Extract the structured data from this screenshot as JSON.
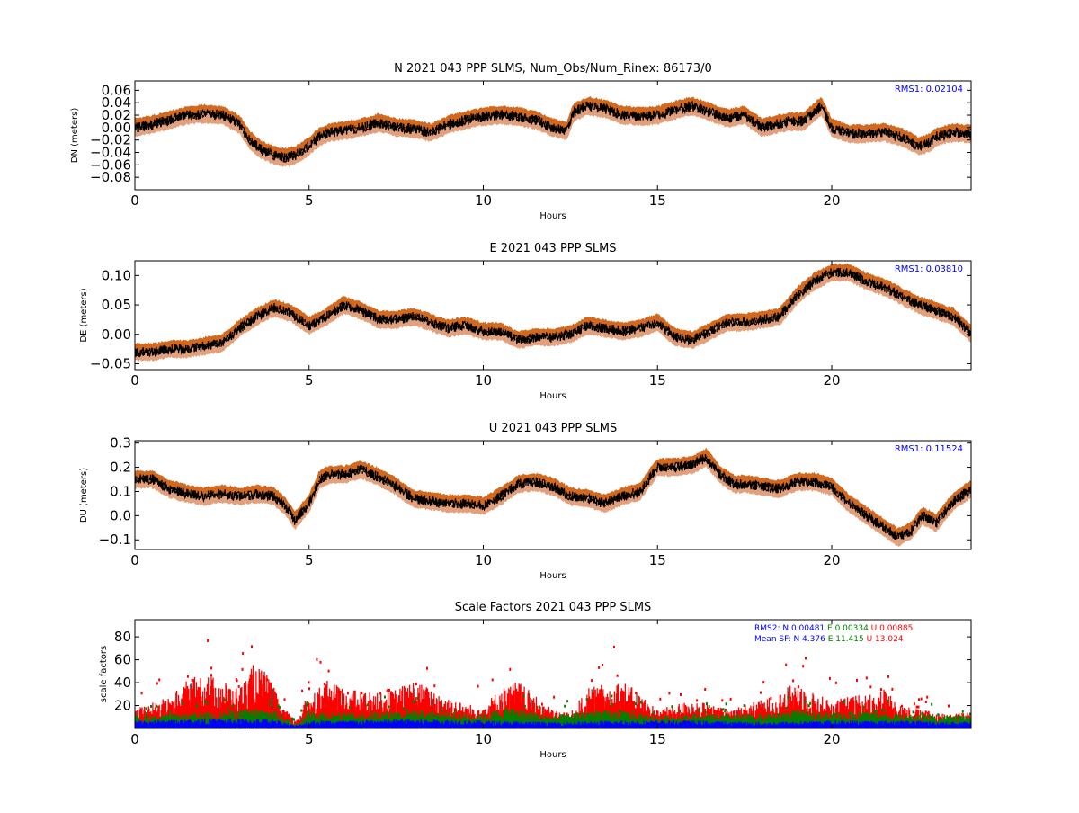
{
  "chart_data": [
    {
      "type": "line",
      "title": "N 2021 043 PPP  SLMS, Num_Obs/Num_Rinex: 86173/0",
      "xlabel": "Hours",
      "ylabel": "DN (meters)",
      "xlim": [
        0,
        24
      ],
      "ylim": [
        -0.1,
        0.075
      ],
      "xticks": [
        "0",
        "5",
        "10",
        "15",
        "20"
      ],
      "yticks": [
        "0.06",
        "0.04",
        "0.02",
        "0.00",
        "−0.02",
        "−0.04",
        "−0.06",
        "−0.08"
      ],
      "rms_label": "RMS1:  0.02104",
      "band_halfwidth": 0.012,
      "series": [
        {
          "x": [
            0,
            0.5,
            1,
            1.5,
            2,
            2.5,
            3,
            3.3,
            3.6,
            4,
            4.3,
            4.6,
            5,
            5.3,
            5.6,
            6,
            6.5,
            7,
            7.5,
            8,
            8.5,
            9,
            9.5,
            10,
            10.5,
            11,
            11.5,
            12,
            12.4,
            12.6,
            13,
            13.5,
            14,
            14.5,
            15,
            15.5,
            16,
            16.5,
            17,
            17.5,
            18,
            18.4,
            18.8,
            19.2,
            19.7,
            20,
            20.5,
            21,
            21.5,
            22,
            22.5,
            22.8,
            23,
            23.5,
            24
          ],
          "y": [
            0.0,
            0.005,
            0.012,
            0.02,
            0.022,
            0.02,
            0.005,
            -0.02,
            -0.035,
            -0.045,
            -0.048,
            -0.045,
            -0.03,
            -0.015,
            -0.008,
            -0.005,
            0.0,
            0.008,
            0.0,
            -0.002,
            -0.008,
            0.005,
            0.012,
            0.018,
            0.02,
            0.018,
            0.012,
            0.0,
            -0.005,
            0.025,
            0.035,
            0.03,
            0.02,
            0.018,
            0.02,
            0.028,
            0.035,
            0.025,
            0.015,
            0.02,
            0.0,
            0.005,
            0.01,
            0.01,
            0.035,
            0.0,
            -0.01,
            -0.01,
            -0.008,
            -0.015,
            -0.03,
            -0.025,
            -0.015,
            -0.008,
            -0.01
          ]
        }
      ]
    },
    {
      "type": "line",
      "title": "E 2021 043 PPP  SLMS",
      "xlabel": "Hours",
      "ylabel": "DE (meters)",
      "xlim": [
        0,
        24
      ],
      "ylim": [
        -0.06,
        0.125
      ],
      "xticks": [
        "0",
        "5",
        "10",
        "15",
        "20"
      ],
      "yticks": [
        "0.10",
        "0.05",
        "0.00",
        "−0.05"
      ],
      "rms_label": "RMS1:  0.03810",
      "band_halfwidth": 0.012,
      "series": [
        {
          "x": [
            0,
            0.5,
            1,
            1.5,
            2,
            2.5,
            3,
            3.5,
            4,
            4.5,
            5,
            5.5,
            6,
            6.5,
            7,
            7.5,
            8,
            8.5,
            9,
            9.5,
            10,
            10.5,
            11,
            11.5,
            12,
            12.5,
            13,
            13.5,
            14,
            14.5,
            15,
            15.5,
            16,
            16.5,
            17,
            17.5,
            18,
            18.5,
            19,
            19.5,
            20,
            20.5,
            21,
            21.5,
            22,
            22.5,
            23,
            23.5,
            24
          ],
          "y": [
            -0.03,
            -0.03,
            -0.025,
            -0.025,
            -0.02,
            -0.015,
            0.01,
            0.03,
            0.045,
            0.035,
            0.015,
            0.03,
            0.05,
            0.04,
            0.025,
            0.025,
            0.03,
            0.02,
            0.01,
            0.015,
            0.005,
            0.005,
            -0.01,
            -0.005,
            -0.005,
            0.0,
            0.015,
            0.01,
            0.005,
            0.01,
            0.02,
            -0.005,
            -0.01,
            0.005,
            0.02,
            0.02,
            0.025,
            0.03,
            0.065,
            0.09,
            0.105,
            0.105,
            0.09,
            0.08,
            0.065,
            0.05,
            0.04,
            0.03,
            0.0
          ]
        }
      ]
    },
    {
      "type": "line",
      "title": "U 2021 043 PPP  SLMS",
      "xlabel": "Hours",
      "ylabel": "DU (meters)",
      "xlim": [
        0,
        24
      ],
      "ylim": [
        -0.14,
        0.31
      ],
      "xticks": [
        "0",
        "5",
        "10",
        "15",
        "20"
      ],
      "yticks": [
        "0.3",
        "0.2",
        "0.1",
        "0.0",
        "−0.1"
      ],
      "rms_label": "RMS1:  0.11524",
      "band_halfwidth": 0.03,
      "series": [
        {
          "x": [
            0,
            0.5,
            1,
            1.5,
            2,
            2.5,
            3,
            3.5,
            4,
            4.3,
            4.6,
            5,
            5.3,
            5.6,
            6,
            6.5,
            7,
            7.5,
            8,
            8.5,
            9,
            9.5,
            10,
            10.5,
            11,
            11.5,
            12,
            12.5,
            13,
            13.5,
            14,
            14.5,
            15,
            15.5,
            16,
            16.4,
            16.8,
            17.2,
            17.6,
            18,
            18.5,
            19,
            19.5,
            20,
            20.5,
            21,
            21.5,
            21.9,
            22.3,
            22.6,
            23,
            23.5,
            24
          ],
          "y": [
            0.15,
            0.15,
            0.11,
            0.09,
            0.08,
            0.09,
            0.08,
            0.09,
            0.08,
            0.04,
            -0.02,
            0.05,
            0.15,
            0.17,
            0.17,
            0.19,
            0.16,
            0.12,
            0.07,
            0.06,
            0.05,
            0.05,
            0.04,
            0.08,
            0.13,
            0.14,
            0.12,
            0.08,
            0.07,
            0.05,
            0.08,
            0.1,
            0.2,
            0.2,
            0.21,
            0.24,
            0.17,
            0.13,
            0.13,
            0.12,
            0.11,
            0.14,
            0.14,
            0.12,
            0.05,
            0.0,
            -0.05,
            -0.09,
            -0.06,
            0.0,
            -0.03,
            0.06,
            0.11
          ]
        }
      ]
    },
    {
      "type": "scatter",
      "title": "Scale Factors 2021 043 PPP  SLMS",
      "xlabel": "Hours",
      "ylabel": "scale factors",
      "xlim": [
        0,
        24
      ],
      "ylim": [
        0,
        95
      ],
      "xticks": [
        "0",
        "5",
        "10",
        "15",
        "20"
      ],
      "yticks": [
        "80",
        "60",
        "40",
        "20"
      ],
      "legend_lines": [
        [
          {
            "text": "RMS2: N  0.00481",
            "color": "#0000ff"
          },
          {
            "text": "E  0.00334",
            "color": "#008000"
          },
          {
            "text": "U  0.00885",
            "color": "#ff0000"
          }
        ],
        [
          {
            "text": "Mean SF: N   4.376",
            "color": "#0000ff"
          },
          {
            "text": "E  11.415",
            "color": "#008000"
          },
          {
            "text": "U  13.024",
            "color": "#ff0000"
          }
        ]
      ],
      "series": [
        {
          "name": "U",
          "color": "#ff0000",
          "x": [
            0,
            1,
            1.5,
            2,
            2.3,
            3,
            3.4,
            3.8,
            4.2,
            4.6,
            5,
            5.5,
            6,
            7,
            7.5,
            8,
            8.5,
            9,
            9.5,
            10,
            10.5,
            11,
            11.5,
            12,
            12.5,
            13,
            13.5,
            14,
            14.5,
            15,
            15.5,
            16,
            16.5,
            17,
            18,
            18.5,
            19,
            19.5,
            20,
            20.5,
            21,
            21.5,
            22,
            22.5,
            23,
            24
          ],
          "y": [
            12,
            20,
            30,
            35,
            32,
            25,
            40,
            35,
            15,
            5,
            22,
            30,
            25,
            22,
            25,
            30,
            25,
            20,
            15,
            15,
            25,
            30,
            20,
            12,
            10,
            25,
            28,
            30,
            22,
            12,
            15,
            18,
            15,
            12,
            18,
            22,
            30,
            22,
            18,
            20,
            22,
            25,
            15,
            12,
            10,
            10
          ]
        },
        {
          "name": "E",
          "color": "#008000",
          "x": [
            0,
            2,
            3.5,
            4,
            4.6,
            5,
            6,
            8,
            10,
            10.7,
            12,
            13,
            14,
            15,
            16,
            18,
            19,
            20,
            21,
            22,
            24
          ],
          "y": [
            8,
            10,
            13,
            12,
            3,
            12,
            10,
            12,
            9,
            14,
            8,
            12,
            11,
            8,
            9,
            9,
            12,
            10,
            11,
            9,
            8
          ]
        },
        {
          "name": "N",
          "color": "#0000ff",
          "x": [
            0,
            2,
            4,
            4.6,
            5,
            6,
            8,
            10,
            12,
            14,
            16,
            18,
            20,
            22,
            24
          ],
          "y": [
            5,
            6,
            6,
            2,
            5,
            5,
            6,
            5,
            4,
            5,
            5,
            4,
            5,
            5,
            4
          ]
        }
      ]
    }
  ]
}
